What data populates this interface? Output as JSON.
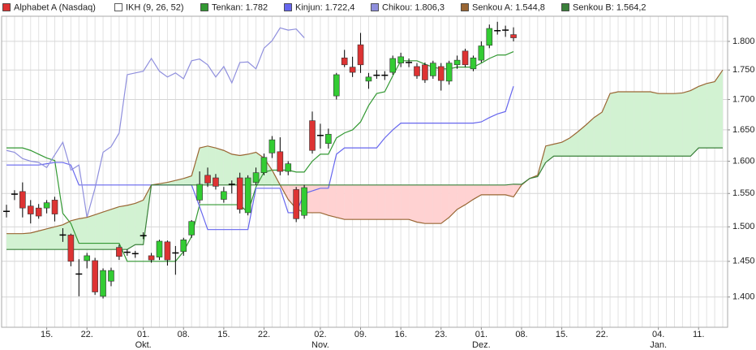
{
  "chart_data": {
    "type": "candlestick",
    "categories": [
      null,
      null,
      null,
      null,
      null,
      "15.",
      null,
      null,
      null,
      null,
      "22.",
      null,
      null,
      null,
      null,
      null,
      null,
      "01.",
      null,
      null,
      null,
      null,
      "08.",
      null,
      null,
      null,
      null,
      "15.",
      null,
      null,
      null,
      null,
      "22.",
      null,
      null,
      null,
      null,
      null,
      null,
      "02.",
      null,
      null,
      null,
      null,
      "09.",
      null,
      null,
      null,
      null,
      "16.",
      null,
      null,
      null,
      null,
      "23.",
      null,
      null,
      null,
      null,
      "01.",
      null,
      null,
      null,
      null,
      "08.",
      null,
      null,
      null,
      null,
      "15.",
      null,
      null,
      null,
      null,
      "22.",
      null,
      null,
      null,
      null,
      null,
      null,
      "04.",
      null,
      null,
      null,
      null,
      "11.",
      null,
      null,
      null
    ],
    "category_sublabels": [
      null,
      null,
      null,
      null,
      null,
      null,
      null,
      null,
      null,
      null,
      null,
      null,
      null,
      null,
      null,
      null,
      null,
      "Okt.",
      null,
      null,
      null,
      null,
      null,
      null,
      null,
      null,
      null,
      null,
      null,
      null,
      null,
      null,
      null,
      null,
      null,
      null,
      null,
      null,
      null,
      "Nov.",
      null,
      null,
      null,
      null,
      null,
      null,
      null,
      null,
      null,
      null,
      null,
      null,
      null,
      null,
      null,
      null,
      null,
      null,
      null,
      "Dez.",
      null,
      null,
      null,
      null,
      null,
      null,
      null,
      null,
      null,
      null,
      null,
      null,
      null,
      null,
      null,
      null,
      null,
      null,
      null,
      null,
      null,
      "Jan.",
      null,
      null,
      null,
      null,
      null,
      null,
      null,
      null
    ],
    "ohlc": {
      "name": "Alphabet A (Nasdaq)",
      "up_color": "#33cc33",
      "down_color": "#dd3333",
      "flat_color": "#000000",
      "open": [
        1523,
        1549,
        1553,
        1531,
        1528,
        1528,
        1540,
        1488,
        1488,
        1432,
        1451,
        1451,
        1401,
        1422,
        1470,
        1463,
        1461,
        1487,
        1458,
        1456,
        1478,
        1462,
        1464,
        1488,
        1540,
        1578,
        1574,
        1541,
        1564,
        1574,
        1521,
        1567,
        1582,
        1613,
        1615,
        1584,
        1556,
        1517,
        1665,
        1641,
        1628,
        1706,
        1771,
        1755,
        1794,
        1731,
        1741,
        1741,
        1746,
        1762,
        1763,
        1756,
        1759,
        1740,
        1756,
        1731,
        1759,
        1783,
        1752,
        1767,
        1793,
        1819,
        1820,
        1812,
        null,
        null,
        null,
        null,
        null,
        null,
        null,
        null,
        null,
        null,
        null,
        null,
        null,
        null,
        null,
        null,
        null,
        null,
        null,
        null,
        null,
        null,
        null,
        null,
        null,
        null
      ],
      "high": [
        1533,
        1555,
        1567,
        1540,
        1534,
        1540,
        1545,
        1498,
        1490,
        1453,
        1462,
        1455,
        1440,
        1441,
        1474,
        1467,
        1465,
        1492,
        1462,
        1481,
        1480,
        1472,
        1484,
        1510,
        1584,
        1590,
        1580,
        1560,
        1570,
        1582,
        1578,
        1590,
        1612,
        1640,
        1638,
        1600,
        1560,
        1563,
        1680,
        1660,
        1652,
        1745,
        1785,
        1773,
        1815,
        1745,
        1750,
        1748,
        1775,
        1780,
        1770,
        1762,
        1763,
        1766,
        1762,
        1766,
        1775,
        1787,
        1775,
        1800,
        1830,
        1835,
        1828,
        1825,
        null,
        null,
        null,
        null,
        null,
        null,
        null,
        null,
        null,
        null,
        null,
        null,
        null,
        null,
        null,
        null,
        null,
        null,
        null,
        null,
        null,
        null,
        null,
        null,
        null,
        null
      ],
      "low": [
        1514,
        1540,
        1514,
        1505,
        1512,
        1520,
        1508,
        1478,
        1443,
        1401,
        1440,
        1403,
        1398,
        1415,
        1452,
        1458,
        1455,
        1482,
        1448,
        1452,
        1444,
        1431,
        1458,
        1484,
        1535,
        1560,
        1556,
        1536,
        1550,
        1520,
        1517,
        1563,
        1578,
        1605,
        1578,
        1578,
        1507,
        1512,
        1612,
        1620,
        1620,
        1700,
        1755,
        1738,
        1745,
        1718,
        1735,
        1733,
        1742,
        1755,
        1755,
        1735,
        1728,
        1735,
        1715,
        1725,
        1752,
        1755,
        1748,
        1763,
        1788,
        1812,
        1808,
        1800,
        null,
        null,
        null,
        null,
        null,
        null,
        null,
        null,
        null,
        null,
        null,
        null,
        null,
        null,
        null,
        null,
        null,
        null,
        null,
        null,
        null,
        null,
        null,
        null,
        null,
        null
      ],
      "close": [
        1523,
        1549,
        1528,
        1519,
        1516,
        1536,
        1519,
        1488,
        1450,
        1432,
        1458,
        1407,
        1437,
        1437,
        1457,
        1463,
        1461,
        1487,
        1452,
        1479,
        1452,
        1462,
        1481,
        1508,
        1564,
        1566,
        1561,
        1553,
        1564,
        1526,
        1574,
        1582,
        1606,
        1634,
        1584,
        1596,
        1512,
        1559,
        1617,
        1641,
        1643,
        1742,
        1759,
        1746,
        1759,
        1738,
        1741,
        1741,
        1770,
        1773,
        1763,
        1740,
        1733,
        1762,
        1732,
        1762,
        1767,
        1759,
        1771,
        1792,
        1823,
        1819,
        1820,
        1806.3,
        null,
        null,
        null,
        null,
        null,
        null,
        null,
        null,
        null,
        null,
        null,
        null,
        null,
        null,
        null,
        null,
        null,
        null,
        null,
        null,
        null,
        null,
        null,
        null,
        null,
        null
      ]
    },
    "indicator": {
      "label": "IKH (9, 26, 52)",
      "color": "#ffffff"
    },
    "series": [
      {
        "name": "Tenkan: 1.782",
        "color": "#339933",
        "values": [
          1621,
          1621,
          1621,
          1617,
          1611,
          1605,
          1601,
          1520,
          1505,
          1476,
          1476,
          1476,
          1476,
          1476,
          1476,
          1450,
          1450,
          1450,
          1450,
          1450,
          1450,
          1450,
          1464,
          1486,
          1533,
          1533,
          1533,
          1533,
          1533,
          1533,
          1521,
          1560,
          1583,
          1586,
          1586,
          1586,
          1583,
          1583,
          1600,
          1611,
          1611,
          1637,
          1645,
          1650,
          1663,
          1690,
          1710,
          1713,
          1740,
          1766,
          1766,
          1766,
          1760,
          1755,
          1752,
          1752,
          1755,
          1755,
          1755,
          1762,
          1770,
          1776,
          1776,
          1782,
          null,
          null,
          null,
          null,
          null,
          null,
          null,
          null,
          null,
          null,
          null,
          null,
          null,
          null,
          null,
          null,
          null,
          null,
          null,
          null,
          null,
          null,
          null,
          null,
          null,
          null
        ]
      },
      {
        "name": "Kinjun: 1.722,4",
        "color": "#6666ee",
        "values": [
          1594,
          1594,
          1594,
          1594,
          1594,
          1596,
          1598,
          1598,
          1594,
          1563,
          1563,
          1563,
          1563,
          1563,
          1563,
          1563,
          1563,
          1563,
          1563,
          1563,
          1563,
          1563,
          1563,
          1563,
          1530,
          1496,
          1496,
          1496,
          1496,
          1496,
          1496,
          1558,
          1558,
          1558,
          1558,
          1521,
          1521,
          1550,
          1554,
          1558,
          1558,
          1611,
          1621,
          1621,
          1621,
          1621,
          1621,
          1637,
          1650,
          1661,
          1661,
          1661,
          1661,
          1661,
          1661,
          1661,
          1661,
          1661,
          1661,
          1663,
          1670,
          1676,
          1680,
          1722.4,
          null,
          null,
          null,
          null,
          null,
          null,
          null,
          null,
          null,
          null,
          null,
          null,
          null,
          null,
          null,
          null,
          null,
          null,
          null,
          null,
          null,
          null,
          null,
          null,
          null,
          null
        ]
      },
      {
        "name": "Chikou: 1.806,3",
        "color": "#8f8fdd",
        "values": [
          1617,
          1614,
          1604,
          1600,
          1598,
          1590,
          1610,
          1630,
          1586,
          1594,
          1514,
          1558,
          1614,
          1623,
          1645,
          1742,
          1745,
          1748,
          1770,
          1748,
          1738,
          1745,
          1735,
          1766,
          1769,
          1759,
          1738,
          1756,
          1728,
          1763,
          1764,
          1752,
          1788,
          1801,
          1824,
          1820,
          1822,
          1806.3,
          null,
          null,
          null,
          null,
          null,
          null,
          null,
          null,
          null,
          null,
          null,
          null,
          null,
          null,
          null,
          null,
          null,
          null,
          null,
          null,
          null,
          null,
          null,
          null,
          null,
          null,
          null,
          null,
          null,
          null,
          null,
          null,
          null,
          null,
          null,
          null,
          null,
          null,
          null,
          null,
          null,
          null,
          null,
          null,
          null,
          null,
          null,
          null,
          null,
          null,
          null,
          null
        ]
      },
      {
        "name": "Senkou A: 1.544,8",
        "color": "#996633",
        "values": [
          1490,
          1490,
          1490,
          1491,
          1494,
          1497,
          1500,
          1503,
          1509,
          1512,
          1514,
          1518,
          1522,
          1526,
          1530,
          1532,
          1535,
          1540,
          1563,
          1565,
          1567,
          1570,
          1573,
          1577,
          1621,
          1624,
          1621,
          1617,
          1611,
          1609,
          1611,
          1614,
          1605,
          1586,
          1563,
          1541,
          1527,
          1521,
          1521,
          1521,
          1517,
          1514,
          1511,
          1511,
          1511,
          1511,
          1511,
          1511,
          1511,
          1511,
          1511,
          1507,
          1505,
          1505,
          1505,
          1514,
          1526,
          1533,
          1541,
          1548,
          1548,
          1548,
          1548,
          1544.8,
          1563,
          1573,
          1578,
          1624,
          1627,
          1630,
          1637,
          1647,
          1658,
          1670,
          1679,
          1710,
          1713,
          1713,
          1713,
          1713,
          1713,
          1710,
          1710,
          1710,
          1711,
          1715,
          1722,
          1727,
          1730,
          1750
        ]
      },
      {
        "name": "Senkou B: 1.564,2",
        "color": "#3a803a",
        "values": [
          1467,
          1467,
          1467,
          1467,
          1467,
          1467,
          1467,
          1467,
          1467,
          1467,
          1467,
          1467,
          1467,
          1467,
          1467,
          1467,
          1474,
          1474,
          1563,
          1563,
          1563,
          1563,
          1563,
          1563,
          1563,
          1563,
          1563,
          1563,
          1563,
          1563,
          1563,
          1563,
          1563,
          1563,
          1563,
          1563,
          1563,
          1563,
          1563,
          1563,
          1563,
          1563,
          1563,
          1563,
          1563,
          1563,
          1563,
          1563,
          1563,
          1563,
          1563,
          1563,
          1563,
          1563,
          1563,
          1563,
          1563,
          1563,
          1563,
          1563,
          1563,
          1563,
          1563,
          1564.2,
          1564,
          1573,
          1576,
          1598,
          1608,
          1608,
          1608,
          1608,
          1608,
          1608,
          1608,
          1608,
          1608,
          1608,
          1608,
          1608,
          1608,
          1608,
          1608,
          1608,
          1608,
          1608,
          1621,
          1621,
          1621,
          1621
        ]
      }
    ],
    "cloud_colors": {
      "up": "#d2f2d2",
      "down": "#ffd2d2"
    },
    "ylim": [
      1359,
      1845
    ],
    "log_scale": true,
    "yticks": [
      {
        "value": 1400,
        "label": "1.400"
      },
      {
        "value": 1450,
        "label": "1.450"
      },
      {
        "value": 1500,
        "label": "1.500"
      },
      {
        "value": 1550,
        "label": "1.550"
      },
      {
        "value": 1600,
        "label": "1.600"
      },
      {
        "value": 1650,
        "label": "1.650"
      },
      {
        "value": 1700,
        "label": "1.700"
      },
      {
        "value": 1750,
        "label": "1.750"
      },
      {
        "value": 1800,
        "label": "1.800"
      }
    ],
    "grid": true
  }
}
